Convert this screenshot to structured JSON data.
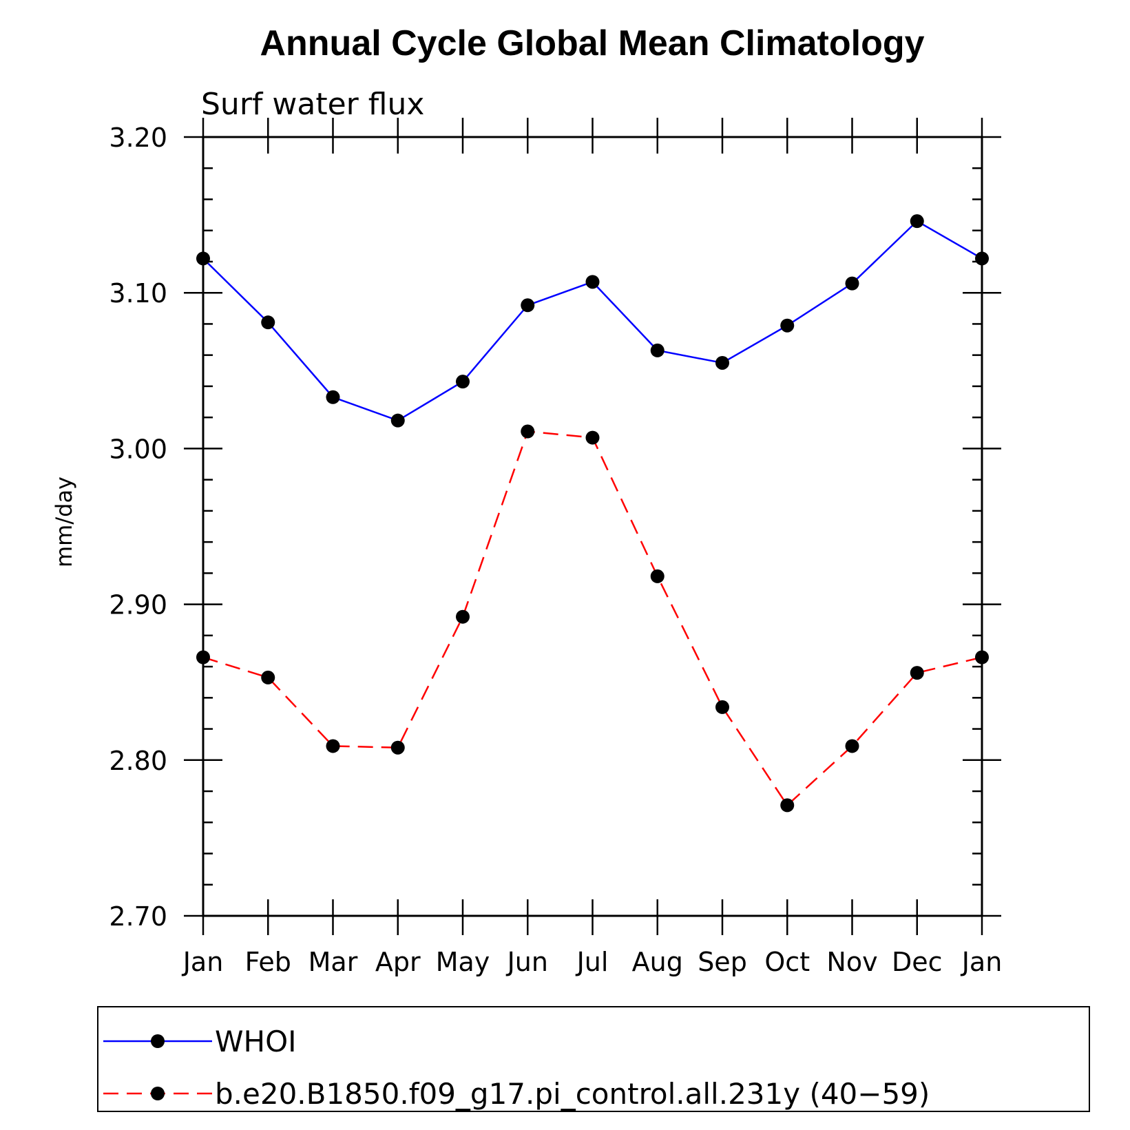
{
  "chart_data": {
    "type": "line",
    "title": "Annual Cycle Global Mean Climatology",
    "subtitle": "Surf water flux",
    "xlabel": "",
    "ylabel": "mm/day",
    "categories": [
      "Jan",
      "Feb",
      "Mar",
      "Apr",
      "May",
      "Jun",
      "Jul",
      "Aug",
      "Sep",
      "Oct",
      "Nov",
      "Dec",
      "Jan"
    ],
    "ylim": [
      2.7,
      3.2
    ],
    "yticks": [
      "2.70",
      "2.80",
      "2.90",
      "3.00",
      "3.10",
      "3.20"
    ],
    "grid": false,
    "legend_position": "bottom",
    "series": [
      {
        "name": "WHOI",
        "color": "#0000ff",
        "line_style": "solid",
        "marker": "filled-circle",
        "values": [
          3.122,
          3.081,
          3.033,
          3.018,
          3.043,
          3.092,
          3.107,
          3.063,
          3.055,
          3.079,
          3.106,
          3.146,
          3.122
        ]
      },
      {
        "name": "b.e20.B1850.f09_g17.pi_control.all.231y (40−59)",
        "color": "#ff0000",
        "line_style": "dashed",
        "marker": "filled-circle",
        "values": [
          2.866,
          2.853,
          2.809,
          2.808,
          2.892,
          3.011,
          3.007,
          2.918,
          2.834,
          2.771,
          2.809,
          2.856,
          2.866
        ]
      }
    ]
  }
}
